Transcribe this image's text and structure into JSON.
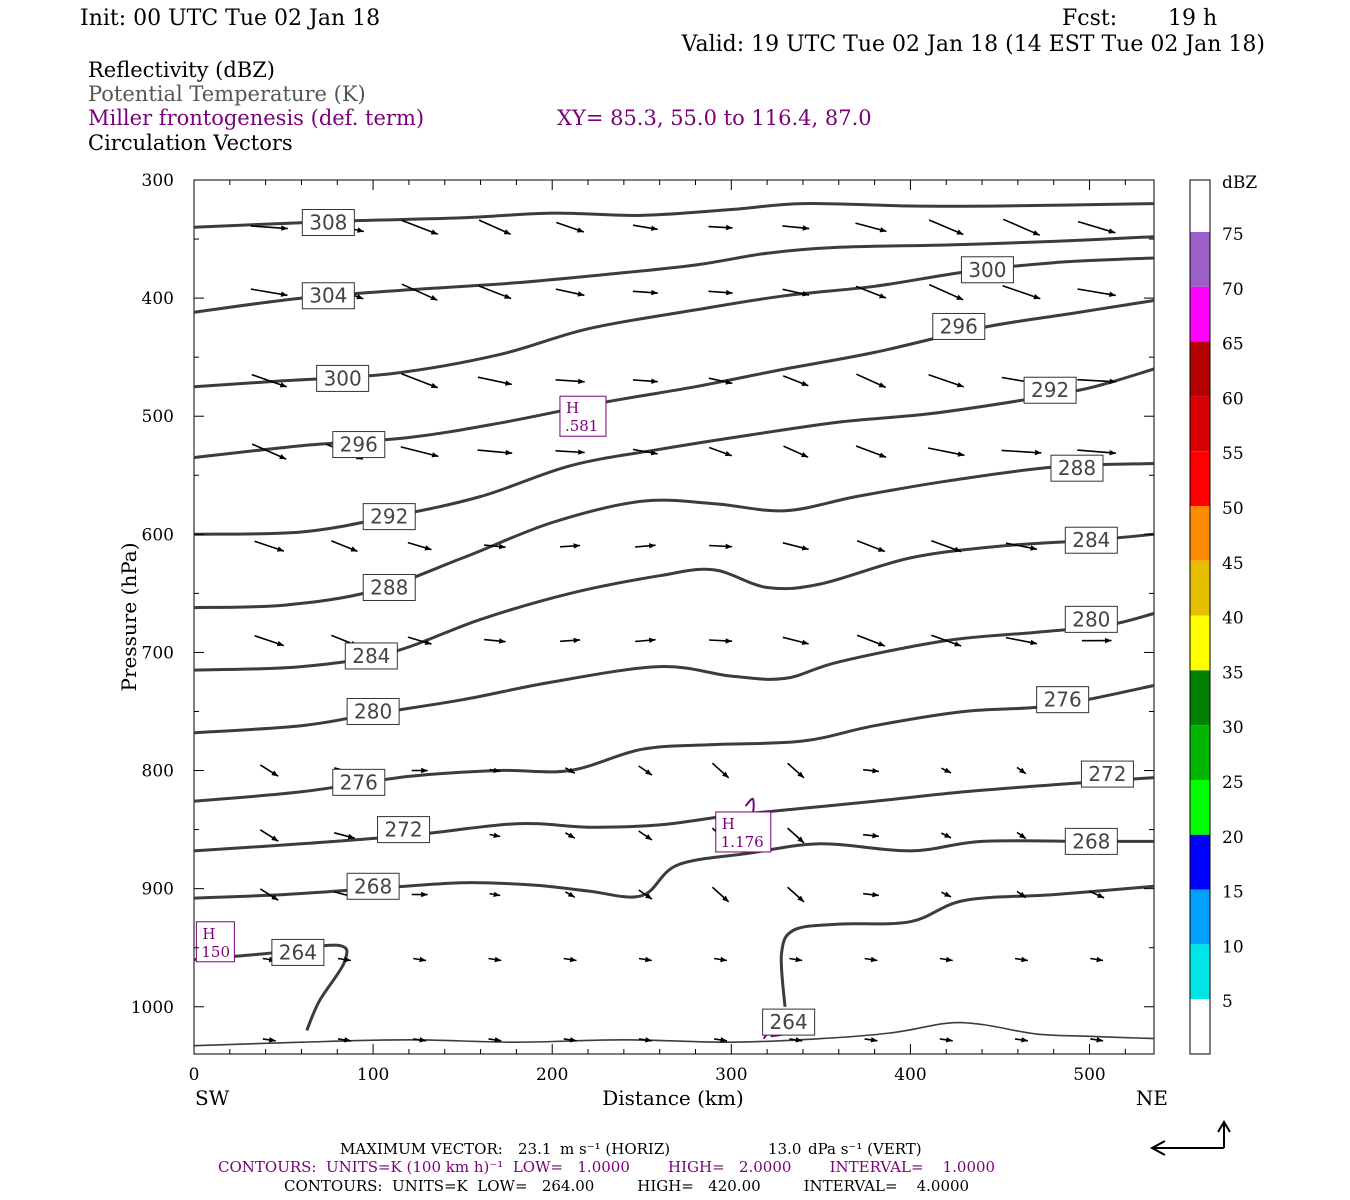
{
  "header": {
    "init": "Init: 00 UTC Tue 02 Jan 18",
    "fcst_label": "Fcst:",
    "fcst_value": "19 h",
    "valid": "Valid: 19 UTC Tue 02 Jan 18 (14 EST Tue 02 Jan 18)"
  },
  "fields": {
    "reflectivity": "Reflectivity (dBZ)",
    "theta": "Potential Temperature (K)",
    "frontogenesis": "Miller frontogenesis (def. term)",
    "xy": "XY=  85.3, 55.0 to 116.4, 87.0",
    "vectors": "Circulation Vectors"
  },
  "colors": {
    "theta": "#3c3c3c",
    "frontogenesis": "#7a007a",
    "vector": "#000000",
    "sub_theta": "#555555",
    "sub_front": "#7a007a"
  },
  "colorbar": {
    "title": "dBZ",
    "levels": [
      {
        "label": "75",
        "color": "#9b5fc8"
      },
      {
        "label": "70",
        "color": "#ff00ff"
      },
      {
        "label": "65",
        "color": "#b40000"
      },
      {
        "label": "60",
        "color": "#d80000"
      },
      {
        "label": "55",
        "color": "#ff0000"
      },
      {
        "label": "50",
        "color": "#ff8c00"
      },
      {
        "label": "45",
        "color": "#e6be00"
      },
      {
        "label": "40",
        "color": "#ffff00"
      },
      {
        "label": "35",
        "color": "#008200"
      },
      {
        "label": "30",
        "color": "#00b400"
      },
      {
        "label": "25",
        "color": "#00ff00"
      },
      {
        "label": "20",
        "color": "#0000ff"
      },
      {
        "label": "15",
        "color": "#00a0ff"
      },
      {
        "label": "10",
        "color": "#00e6e6"
      },
      {
        "label": "5",
        "color": "#ffffff"
      }
    ]
  },
  "chart_data": {
    "type": "cross-section",
    "xlabel": "Distance (km)",
    "ylabel": "Pressure (hPa)",
    "xlim": [
      0,
      536
    ],
    "ylim": [
      1040,
      300
    ],
    "x_ticks": [
      "0",
      "100",
      "200",
      "300",
      "400",
      "500"
    ],
    "y_ticks": [
      "300",
      "400",
      "500",
      "600",
      "700",
      "800",
      "900",
      "1000"
    ],
    "left_endpoint": "SW",
    "right_endpoint": "NE",
    "theta_contours": [
      {
        "value": "308",
        "points": [
          [
            0,
            340
          ],
          [
            80,
            335
          ],
          [
            150,
            332
          ],
          [
            200,
            328
          ],
          [
            250,
            330
          ],
          [
            300,
            325
          ],
          [
            340,
            320
          ],
          [
            400,
            322
          ],
          [
            450,
            322
          ],
          [
            536,
            320
          ]
        ],
        "labels": [
          [
            75,
            336
          ]
        ]
      },
      {
        "value": "304",
        "points": [
          [
            0,
            412
          ],
          [
            60,
            400
          ],
          [
            120,
            393
          ],
          [
            180,
            387
          ],
          [
            230,
            380
          ],
          [
            280,
            372
          ],
          [
            320,
            362
          ],
          [
            360,
            357
          ],
          [
            420,
            355
          ],
          [
            480,
            352
          ],
          [
            536,
            348
          ]
        ],
        "labels": [
          [
            75,
            398
          ]
        ]
      },
      {
        "value": "300",
        "points": [
          [
            0,
            475
          ],
          [
            50,
            470
          ],
          [
            110,
            464
          ],
          [
            170,
            448
          ],
          [
            220,
            426
          ],
          [
            280,
            410
          ],
          [
            330,
            398
          ],
          [
            380,
            390
          ],
          [
            430,
            378
          ],
          [
            480,
            370
          ],
          [
            536,
            366
          ]
        ],
        "labels": [
          [
            83,
            468
          ],
          [
            443,
            376
          ]
        ]
      },
      {
        "value": "296",
        "points": [
          [
            0,
            535
          ],
          [
            60,
            525
          ],
          [
            120,
            518
          ],
          [
            170,
            506
          ],
          [
            230,
            488
          ],
          [
            280,
            475
          ],
          [
            330,
            460
          ],
          [
            380,
            446
          ],
          [
            440,
            425
          ],
          [
            490,
            413
          ],
          [
            536,
            402
          ]
        ],
        "labels": [
          [
            92,
            524
          ],
          [
            427,
            424
          ]
        ]
      },
      {
        "value": "292",
        "points": [
          [
            0,
            600
          ],
          [
            60,
            598
          ],
          [
            110,
            585
          ],
          [
            160,
            568
          ],
          [
            210,
            542
          ],
          [
            260,
            528
          ],
          [
            310,
            516
          ],
          [
            360,
            505
          ],
          [
            410,
            498
          ],
          [
            460,
            487
          ],
          [
            500,
            476
          ],
          [
            536,
            460
          ]
        ],
        "labels": [
          [
            109,
            585
          ],
          [
            478,
            478
          ]
        ]
      },
      {
        "value": "288",
        "points": [
          [
            0,
            662
          ],
          [
            50,
            660
          ],
          [
            100,
            648
          ],
          [
            150,
            620
          ],
          [
            200,
            590
          ],
          [
            250,
            572
          ],
          [
            290,
            574
          ],
          [
            330,
            580
          ],
          [
            370,
            568
          ],
          [
            420,
            555
          ],
          [
            480,
            543
          ],
          [
            536,
            540
          ]
        ],
        "labels": [
          [
            109,
            645
          ],
          [
            493,
            544
          ]
        ]
      },
      {
        "value": "284",
        "points": [
          [
            0,
            715
          ],
          [
            60,
            712
          ],
          [
            110,
            700
          ],
          [
            160,
            672
          ],
          [
            210,
            650
          ],
          [
            260,
            635
          ],
          [
            290,
            630
          ],
          [
            320,
            645
          ],
          [
            350,
            642
          ],
          [
            400,
            620
          ],
          [
            450,
            610
          ],
          [
            500,
            605
          ],
          [
            536,
            600
          ]
        ],
        "labels": [
          [
            99,
            703
          ],
          [
            501,
            605
          ]
        ]
      },
      {
        "value": "280",
        "points": [
          [
            0,
            768
          ],
          [
            60,
            762
          ],
          [
            100,
            752
          ],
          [
            150,
            740
          ],
          [
            200,
            725
          ],
          [
            260,
            712
          ],
          [
            300,
            720
          ],
          [
            330,
            722
          ],
          [
            360,
            708
          ],
          [
            420,
            690
          ],
          [
            470,
            683
          ],
          [
            510,
            677
          ],
          [
            536,
            667
          ]
        ],
        "labels": [
          [
            100,
            750
          ],
          [
            501,
            672
          ]
        ]
      },
      {
        "value": "276",
        "points": [
          [
            0,
            826
          ],
          [
            60,
            818
          ],
          [
            120,
            805
          ],
          [
            170,
            800
          ],
          [
            210,
            800
          ],
          [
            250,
            782
          ],
          [
            290,
            778
          ],
          [
            340,
            775
          ],
          [
            380,
            762
          ],
          [
            430,
            750
          ],
          [
            480,
            745
          ],
          [
            536,
            728
          ]
        ],
        "labels": [
          [
            92,
            810
          ],
          [
            485,
            740
          ]
        ]
      },
      {
        "value": "272",
        "points": [
          [
            0,
            868
          ],
          [
            60,
            862
          ],
          [
            120,
            855
          ],
          [
            180,
            845
          ],
          [
            220,
            848
          ],
          [
            260,
            846
          ],
          [
            300,
            838
          ],
          [
            340,
            832
          ],
          [
            380,
            826
          ],
          [
            430,
            818
          ],
          [
            480,
            812
          ],
          [
            536,
            806
          ]
        ],
        "labels": [
          [
            117,
            850
          ],
          [
            510,
            803
          ]
        ]
      },
      {
        "value": "268",
        "points": [
          [
            0,
            908
          ],
          [
            50,
            905
          ],
          [
            100,
            900
          ],
          [
            150,
            895
          ],
          [
            190,
            897
          ],
          [
            220,
            902
          ],
          [
            250,
            906
          ],
          [
            270,
            880
          ],
          [
            310,
            870
          ],
          [
            350,
            862
          ],
          [
            400,
            868
          ],
          [
            440,
            860
          ],
          [
            500,
            860
          ],
          [
            536,
            860
          ]
        ],
        "labels": [
          [
            100,
            898
          ],
          [
            501,
            860
          ]
        ]
      },
      {
        "value": "264",
        "points": [
          [
            0,
            960
          ],
          [
            40,
            955
          ],
          [
            80,
            948
          ],
          [
            84,
            962
          ],
          [
            70,
            995
          ],
          [
            63,
            1020
          ]
        ],
        "labels": [
          [
            58,
            954
          ]
        ]
      },
      {
        "value": "264",
        "points": [
          [
            330,
            1000
          ],
          [
            328,
            955
          ],
          [
            335,
            935
          ],
          [
            360,
            930
          ],
          [
            400,
            928
          ],
          [
            430,
            910
          ],
          [
            480,
            905
          ],
          [
            536,
            898
          ]
        ],
        "labels": [
          [
            332,
            1013
          ]
        ]
      },
      {
        "value": "",
        "points": [
          [
            0,
            1033
          ],
          [
            60,
            1030
          ],
          [
            120,
            1028
          ],
          [
            180,
            1030
          ],
          [
            240,
            1028
          ],
          [
            300,
            1030
          ],
          [
            350,
            1027
          ],
          [
            390,
            1022
          ],
          [
            420,
            1014
          ],
          [
            440,
            1015
          ],
          [
            470,
            1023
          ],
          [
            500,
            1025
          ],
          [
            536,
            1027
          ]
        ],
        "labels": []
      }
    ],
    "frontogenesis_maxima": [
      {
        "marker": "H",
        "value": ".581",
        "x": 206,
        "p": 500
      },
      {
        "marker": "H",
        "value": "1.176",
        "x": 293,
        "p": 852
      },
      {
        "marker": "H",
        "value": "150",
        "x": 3,
        "p": 945
      }
    ],
    "frontogenesis_contour": [
      [
        308,
        830
      ],
      [
        312,
        824
      ],
      [
        312,
        836
      ],
      [
        308,
        842
      ]
    ],
    "frontogenesis_contour_2": [
      [
        318,
        1027
      ],
      [
        325,
        1015
      ],
      [
        332,
        1022
      ],
      [
        322,
        1025
      ]
    ],
    "max_vector": {
      "label": "MAXIMUM VECTOR:",
      "horiz": "23.1",
      "horiz_units": "m s⁻¹ (HORIZ)",
      "vert": "13.0",
      "vert_units": "dPa s⁻¹ (VERT)"
    },
    "contour_info": [
      {
        "text": "CONTOURS:  UNITS=K (100 km h)⁻¹  LOW=   1.0000        HIGH=   2.0000        INTERVAL=    1.0000",
        "color": "#7a007a"
      },
      {
        "text": "CONTOURS:  UNITS=K  LOW=   264.00         HIGH=   420.00         INTERVAL=    4.0000",
        "color": "#000000"
      }
    ]
  }
}
